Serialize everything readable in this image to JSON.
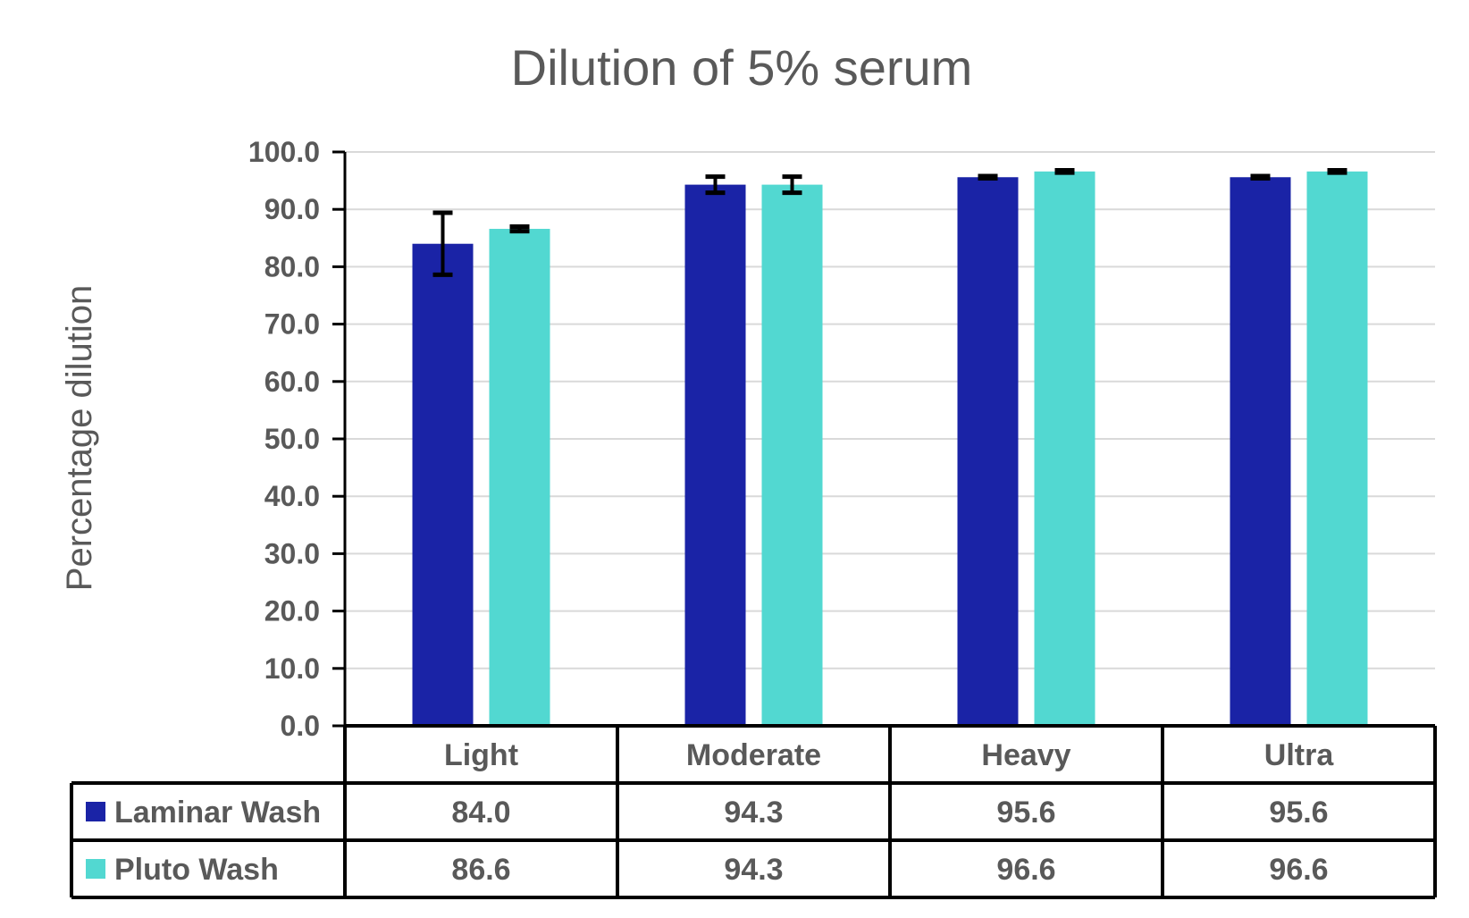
{
  "chart_data": {
    "type": "bar",
    "title": "Dilution of 5% serum",
    "xlabel": "",
    "ylabel": "Percentage dilution",
    "ylim": [
      0,
      100
    ],
    "yticks": [
      "0.0",
      "10.0",
      "20.0",
      "30.0",
      "40.0",
      "50.0",
      "60.0",
      "70.0",
      "80.0",
      "90.0",
      "100.0"
    ],
    "grid": true,
    "legend": "data-table",
    "categories": [
      "Light",
      "Moderate",
      "Heavy",
      "Ultra"
    ],
    "series": [
      {
        "name": "Laminar Wash",
        "color": "#1A23A6",
        "values": [
          84.0,
          94.3,
          95.6,
          95.6
        ],
        "labels": [
          "84.0",
          "94.3",
          "95.6",
          "95.6"
        ],
        "error": [
          5.4,
          1.4,
          0.2,
          0.2
        ]
      },
      {
        "name": "Pluto Wash",
        "color": "#52D8D1",
        "values": [
          86.6,
          94.3,
          96.6,
          96.6
        ],
        "labels": [
          "86.6",
          "94.3",
          "96.6",
          "96.6"
        ],
        "error": [
          0.4,
          1.4,
          0.2,
          0.2
        ]
      }
    ]
  }
}
